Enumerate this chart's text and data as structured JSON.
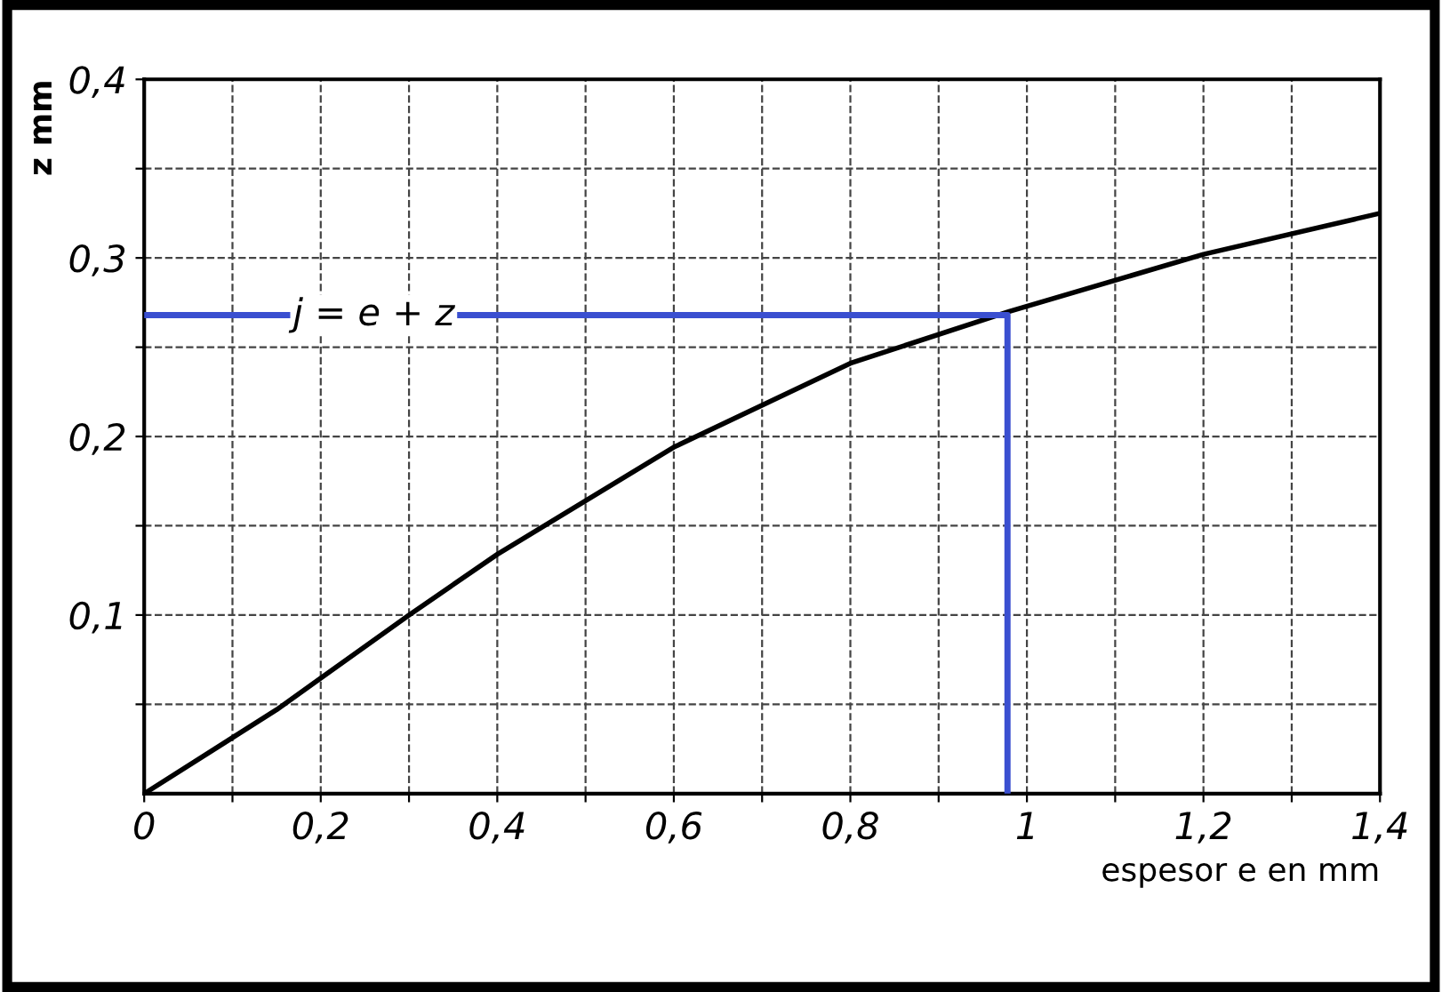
{
  "chart_data": {
    "type": "line",
    "xlabel": "espesor e en mm",
    "ylabel": "z mm",
    "xlim": [
      0,
      1.4
    ],
    "ylim": [
      0,
      0.4
    ],
    "xticks": [
      {
        "value": 0,
        "label": "0"
      },
      {
        "value": 0.1,
        "label": null
      },
      {
        "value": 0.2,
        "label": "0,2"
      },
      {
        "value": 0.3,
        "label": null
      },
      {
        "value": 0.4,
        "label": "0,4"
      },
      {
        "value": 0.5,
        "label": null
      },
      {
        "value": 0.6,
        "label": "0,6"
      },
      {
        "value": 0.7,
        "label": null
      },
      {
        "value": 0.8,
        "label": "0,8"
      },
      {
        "value": 0.9,
        "label": null
      },
      {
        "value": 1,
        "label": "1"
      },
      {
        "value": 1.1,
        "label": null
      },
      {
        "value": 1.2,
        "label": "1,2"
      },
      {
        "value": 1.3,
        "label": null
      },
      {
        "value": 1.4,
        "label": "1,4"
      }
    ],
    "yticks": [
      {
        "value": 0.05,
        "label": null
      },
      {
        "value": 0.1,
        "label": "0,1"
      },
      {
        "value": 0.15,
        "label": null
      },
      {
        "value": 0.2,
        "label": "0,2"
      },
      {
        "value": 0.25,
        "label": null
      },
      {
        "value": 0.3,
        "label": "0,3"
      },
      {
        "value": 0.35,
        "label": null
      },
      {
        "value": 0.4,
        "label": "0,4"
      }
    ],
    "grid": true,
    "line_style": "solid",
    "marker": "none",
    "series": [
      {
        "color": "#000000",
        "x": [
          0,
          0.15,
          0.3,
          0.4,
          0.6,
          0.8,
          0.98,
          1.2,
          1.4
        ],
        "values": [
          0,
          0.047,
          0.1,
          0.134,
          0.194,
          0.241,
          0.27,
          0.302,
          0.325
        ]
      },
      {
        "color": "#3a4fd0",
        "x": [
          0,
          0.978,
          0.978
        ],
        "values": [
          0.268,
          0.268,
          0
        ]
      }
    ],
    "annotations": [
      {
        "text": "j = e + z",
        "x": 0.26,
        "y": 0.268
      }
    ]
  }
}
